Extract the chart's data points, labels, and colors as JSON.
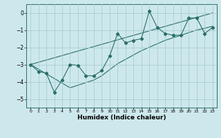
{
  "xlabel": "Humidex (Indice chaleur)",
  "bg_color": "#cde8ec",
  "line_color": "#2a6e68",
  "grid_color": "#a8cdd4",
  "x_data": [
    0,
    1,
    2,
    3,
    4,
    5,
    6,
    7,
    8,
    9,
    10,
    11,
    12,
    13,
    14,
    15,
    16,
    17,
    18,
    19,
    20,
    21,
    22,
    23
  ],
  "y_main": [
    -3.0,
    -3.4,
    -3.5,
    -4.6,
    -3.9,
    -3.0,
    -3.05,
    -3.65,
    -3.65,
    -3.35,
    -2.5,
    -1.2,
    -1.75,
    -1.6,
    -1.5,
    0.1,
    -0.85,
    -1.2,
    -1.3,
    -1.3,
    -0.3,
    -0.3,
    -1.2,
    -0.85
  ],
  "y_upper": [
    -3.0,
    -2.87,
    -2.74,
    -2.61,
    -2.48,
    -2.35,
    -2.22,
    -2.09,
    -1.96,
    -1.83,
    -1.7,
    -1.57,
    -1.44,
    -1.31,
    -1.18,
    -1.05,
    -0.92,
    -0.79,
    -0.66,
    -0.53,
    -0.4,
    -0.27,
    -0.14,
    -0.01
  ],
  "y_lower": [
    -3.0,
    -3.27,
    -3.54,
    -3.81,
    -4.08,
    -4.35,
    -4.2,
    -4.05,
    -3.9,
    -3.65,
    -3.3,
    -2.95,
    -2.7,
    -2.45,
    -2.2,
    -2.0,
    -1.8,
    -1.6,
    -1.45,
    -1.3,
    -1.15,
    -1.0,
    -0.9,
    -0.78
  ],
  "ylim": [
    -5.5,
    0.5
  ],
  "yticks": [
    0,
    -1,
    -2,
    -3,
    -4,
    -5
  ],
  "xticks": [
    0,
    1,
    2,
    3,
    4,
    5,
    6,
    7,
    8,
    9,
    10,
    11,
    12,
    13,
    14,
    15,
    16,
    17,
    18,
    19,
    20,
    21,
    22,
    23
  ]
}
